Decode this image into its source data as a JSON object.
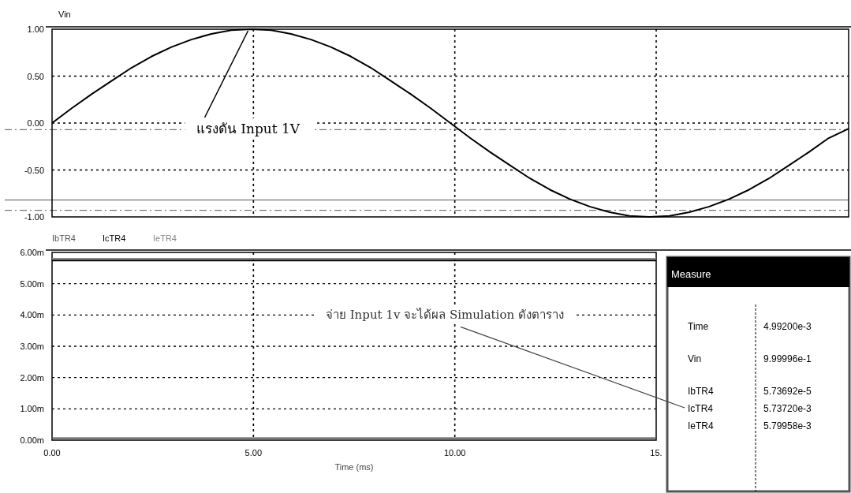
{
  "chart_data": [
    {
      "type": "line",
      "categories": [
        null,
        null,
        null,
        null,
        null,
        null,
        null,
        null,
        null,
        null,
        null,
        null,
        null,
        null,
        null,
        null,
        null,
        null,
        null,
        null,
        null,
        null,
        null,
        null,
        null,
        null,
        null,
        null,
        null,
        null,
        null,
        null,
        null,
        null,
        null,
        null,
        null,
        null,
        null,
        null,
        null
      ],
      "ylabel": "Vin",
      "series": [
        {
          "color": "#000000",
          "values": [
            0,
            0.16,
            0.31,
            0.45,
            0.59,
            0.71,
            0.81,
            0.89,
            0.95,
            0.99,
            1,
            0.99,
            0.95,
            0.89,
            0.81,
            0.71,
            0.59,
            0.45,
            0.31,
            0.16,
            0,
            -0.16,
            -0.31,
            -0.45,
            -0.59,
            -0.71,
            -0.81,
            -0.89,
            -0.95,
            -0.99,
            -1,
            -0.99,
            -0.95,
            -0.89,
            -0.81,
            -0.71,
            -0.59,
            -0.45,
            -0.31,
            -0.16,
            -0.06
          ]
        }
      ],
      "ylim": [
        -1,
        1
      ],
      "yticks": [
        {
          "value": 1,
          "label": "1.00"
        },
        {
          "value": 0.5,
          "label": "0.50"
        },
        {
          "value": 0,
          "label": "0.00"
        },
        {
          "value": -0.5,
          "label": "-0.50"
        },
        {
          "value": -1,
          "label": "-1.00"
        }
      ],
      "grid": true,
      "marker": "none",
      "line_style": "solid",
      "ref_lines": [
        {
          "axis": "y",
          "value": -0.07,
          "color": "#555555",
          "line_style": "dashed"
        },
        {
          "axis": "y",
          "value": -0.82,
          "color": "#555555",
          "line_style": "solid"
        },
        {
          "axis": "y",
          "value": -0.93,
          "color": "#555555",
          "line_style": "dashed"
        }
      ],
      "annotations": [
        "แรงดัน Input 1V"
      ]
    },
    {
      "type": "line",
      "x": [
        0,
        15
      ],
      "series": [
        {
          "name": "IbTR4",
          "color": "#555555",
          "values": [
            0.06,
            0.06
          ]
        },
        {
          "name": "IcTR4",
          "color": "#000000",
          "values": [
            5.74,
            5.74
          ]
        },
        {
          "name": "IeTR4",
          "color": "#888888",
          "values": [
            5.8,
            5.8
          ]
        }
      ],
      "xlim": [
        0,
        15
      ],
      "xticks": [
        {
          "value": 0,
          "label": "0.00"
        },
        {
          "value": 5,
          "label": "5.00"
        },
        {
          "value": 10,
          "label": "10.00"
        },
        {
          "value": 15,
          "label": "15."
        }
      ],
      "ylim": [
        0,
        6
      ],
      "yticks": [
        {
          "value": 0,
          "label": "0.00m"
        },
        {
          "value": 1,
          "label": "1.00m"
        },
        {
          "value": 2,
          "label": "2.00m"
        },
        {
          "value": 3,
          "label": "3.00m"
        },
        {
          "value": 4,
          "label": "4.00m"
        },
        {
          "value": 5,
          "label": "5.00m"
        },
        {
          "value": 6,
          "label": "6.00m"
        }
      ],
      "xlabel": "Time (ms)",
      "grid": true,
      "legend": "top left",
      "marker": "none",
      "line_style": "solid",
      "annotations": [
        "จ่าย Input 1v จะได้ผล Simulation ดังตาราง"
      ]
    },
    {
      "type": "other",
      "title": "Measure",
      "categories": [
        "Time",
        "Vin",
        "IbTR4",
        "IcTR4",
        "IeTR4"
      ],
      "value_labels": [
        "4.99200e-3",
        "9.99996e-1",
        "5.73692e-5",
        "5.73720e-3",
        "5.79958e-3"
      ]
    }
  ]
}
